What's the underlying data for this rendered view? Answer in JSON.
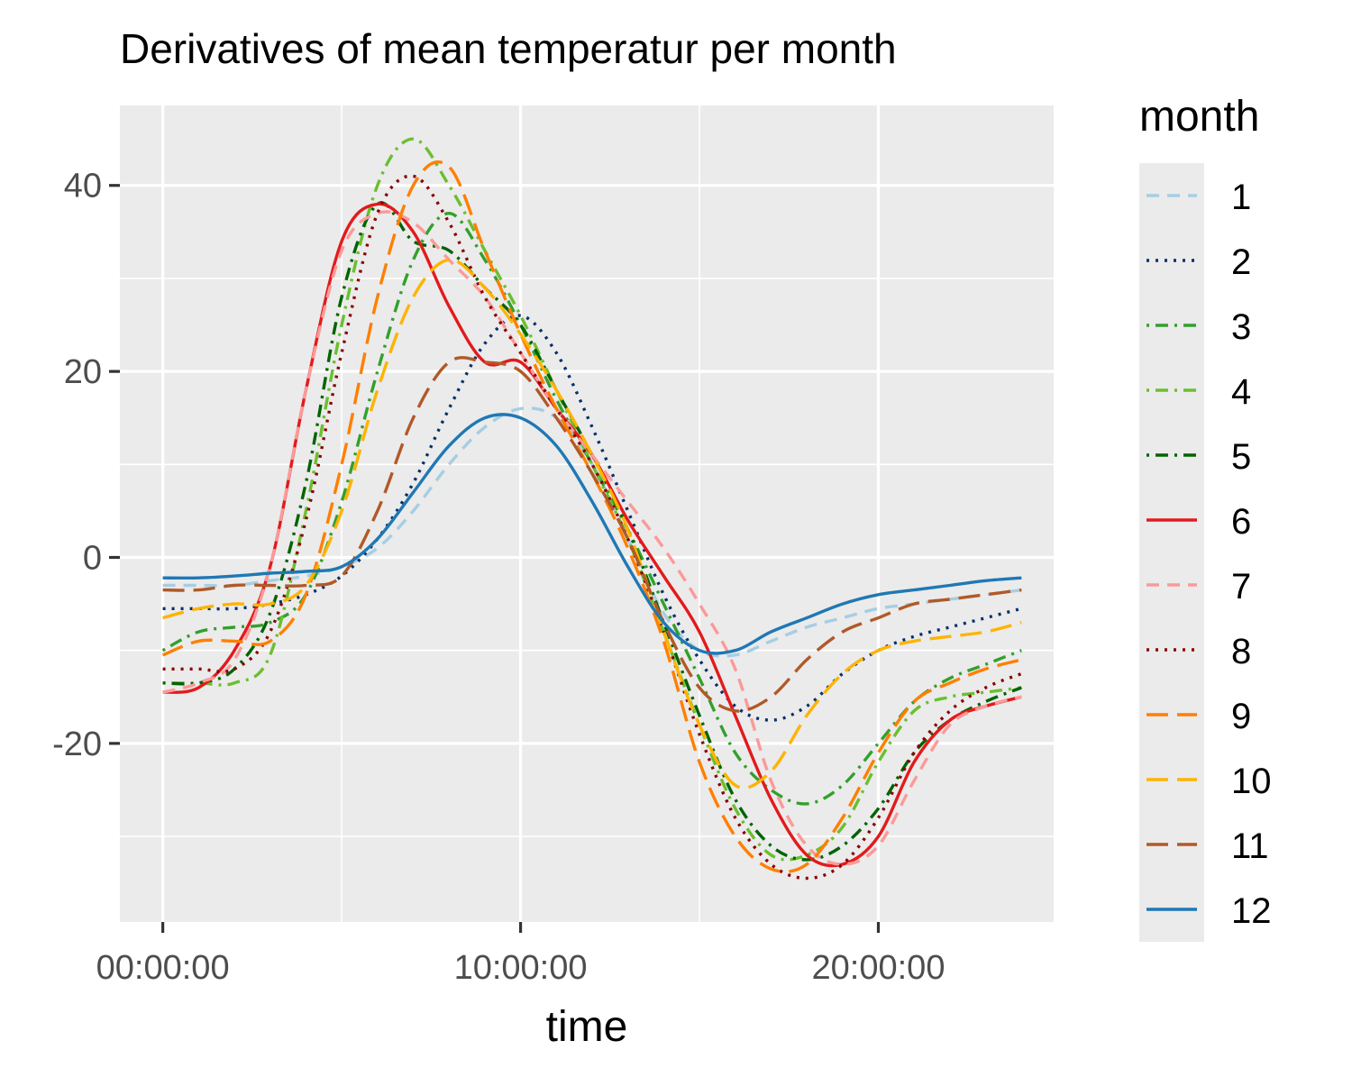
{
  "chart_data": {
    "type": "line",
    "title": "Derivatives of mean temperatur per month",
    "xlabel": "time",
    "ylabel": "",
    "x_ticks": [
      {
        "hours": 0,
        "label": "00:00:00"
      },
      {
        "hours": 10,
        "label": "10:00:00"
      },
      {
        "hours": 20,
        "label": "20:00:00"
      }
    ],
    "y_ticks": [
      -20,
      0,
      20,
      40
    ],
    "xlim_hours": [
      -1.2,
      24.9
    ],
    "ylim": [
      -39.2,
      48.6
    ],
    "grid": true,
    "legend": {
      "title": "month",
      "position": "right"
    },
    "x_hours": [
      0,
      1,
      2,
      3,
      4,
      5,
      6,
      7,
      8,
      9,
      10,
      11,
      12,
      13,
      14,
      15,
      16,
      17,
      18,
      19,
      20,
      21,
      22,
      23,
      24
    ],
    "series": [
      {
        "name": "1",
        "color": "#a6cee3",
        "dash": "dashed",
        "values": [
          -3,
          -3,
          -3,
          -2.5,
          -2,
          -1,
          1,
          5,
          10,
          14,
          16,
          15,
          10,
          2,
          -6,
          -10,
          -10.5,
          -9,
          -7.5,
          -6.5,
          -5.5,
          -5,
          -4.5,
          -4,
          -3.5
        ]
      },
      {
        "name": "2",
        "color": "#08306b",
        "dash": "dotted",
        "values": [
          -5.5,
          -5.5,
          -5.5,
          -5,
          -4,
          -2,
          2,
          8,
          16,
          23,
          26,
          22,
          14,
          5,
          -4,
          -11,
          -16,
          -17.5,
          -16,
          -12.5,
          -10,
          -8.5,
          -7.5,
          -6.5,
          -5.5
        ]
      },
      {
        "name": "3",
        "color": "#33a02c",
        "dash": "dashdot",
        "values": [
          -10,
          -8,
          -7.5,
          -7,
          -4,
          6,
          20,
          32,
          37,
          32,
          25,
          17,
          10,
          3,
          -5,
          -13,
          -21,
          -25,
          -26.5,
          -24.5,
          -20,
          -15.5,
          -13,
          -11.5,
          -10
        ]
      },
      {
        "name": "4",
        "color": "#6bbf2f",
        "dash": "dashdot",
        "values": [
          -13.5,
          -13.5,
          -13.5,
          -10.5,
          5,
          25,
          40,
          45,
          40,
          33,
          26,
          18,
          10,
          2,
          -8,
          -18,
          -27,
          -32,
          -32,
          -29,
          -22,
          -16.5,
          -15,
          -14.5,
          -14
        ]
      },
      {
        "name": "5",
        "color": "#006400",
        "dash": "dashdot",
        "values": [
          -13.5,
          -13.5,
          -12,
          -6,
          8,
          28,
          38,
          34,
          33,
          29,
          25,
          18,
          11,
          3,
          -7,
          -17,
          -26,
          -31,
          -32.5,
          -31,
          -27,
          -21,
          -17.5,
          -15.5,
          -14
        ]
      },
      {
        "name": "6",
        "color": "#e31a1c",
        "dash": "solid",
        "values": [
          -14.5,
          -14,
          -10,
          -1,
          18,
          34,
          38,
          35,
          27,
          21,
          21,
          16,
          11,
          4,
          -2,
          -8,
          -17,
          -26,
          -32,
          -33,
          -30,
          -22,
          -17.5,
          -16,
          -15
        ]
      },
      {
        "name": "7",
        "color": "#fb9a99",
        "dash": "dashed",
        "values": [
          -14.5,
          -13.5,
          -11,
          -1,
          18,
          33,
          37,
          36,
          32,
          28,
          22,
          16,
          11,
          6,
          1,
          -5,
          -12,
          -24,
          -31,
          -33,
          -31,
          -24,
          -18,
          -16,
          -15
        ]
      },
      {
        "name": "8",
        "color": "#8b0000",
        "dash": "dotted",
        "values": [
          -12,
          -12,
          -12,
          -8,
          4,
          22,
          37,
          41,
          36,
          28,
          22,
          16,
          10,
          2,
          -8,
          -19,
          -28,
          -33,
          -34.5,
          -33,
          -28,
          -21,
          -16.5,
          -14,
          -12.5
        ]
      },
      {
        "name": "9",
        "color": "#ff7f00",
        "dash": "longdash",
        "values": [
          -10.5,
          -9,
          -9,
          -9,
          -4,
          10,
          28,
          40,
          42,
          33,
          24,
          16,
          9,
          1,
          -9,
          -22,
          -30,
          -33.5,
          -33,
          -28,
          -21,
          -15.5,
          -13.5,
          -12,
          -11
        ]
      },
      {
        "name": "10",
        "color": "#ffb300",
        "dash": "longdash",
        "values": [
          -6.5,
          -5.5,
          -5,
          -5,
          -3,
          5,
          18,
          28,
          32,
          29,
          24,
          18,
          11,
          3,
          -8,
          -18,
          -24.5,
          -23,
          -17,
          -12.5,
          -10,
          -9,
          -8.5,
          -8,
          -7
        ]
      },
      {
        "name": "11",
        "color": "#b15928",
        "dash": "longdash",
        "values": [
          -3.5,
          -3.5,
          -3,
          -3,
          -3,
          -2,
          5,
          15,
          21,
          21,
          20,
          15,
          9,
          2,
          -7,
          -14,
          -16.5,
          -15,
          -11,
          -8,
          -6.5,
          -5,
          -4.5,
          -4,
          -3.5
        ]
      },
      {
        "name": "12",
        "color": "#1f78b4",
        "dash": "solid",
        "values": [
          -2.2,
          -2.2,
          -2,
          -1.7,
          -1.5,
          -1,
          2,
          7,
          12,
          15,
          15,
          12,
          6,
          -1,
          -7,
          -10,
          -10,
          -8,
          -6.5,
          -5,
          -4,
          -3.5,
          -3,
          -2.5,
          -2.2
        ]
      }
    ]
  }
}
